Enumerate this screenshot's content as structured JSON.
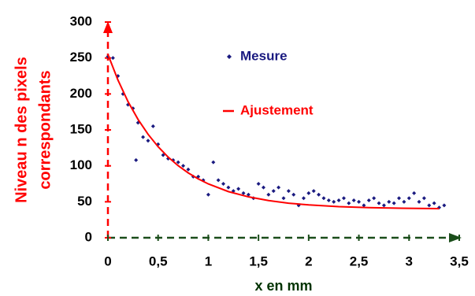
{
  "chart_data": {
    "type": "scatter",
    "ylabel": [
      "Niveau n des pixels",
      "correspondants"
    ],
    "xlabel": "x en mm",
    "xlim": [
      0,
      3.5
    ],
    "ylim": [
      0,
      300
    ],
    "xticks": [
      0,
      {
        "value": 0.5,
        "label": "0,5"
      },
      1,
      {
        "value": 1.5,
        "label": "1,5"
      },
      2,
      {
        "value": 2.5,
        "label": "2,5"
      },
      3,
      {
        "value": 3.5,
        "label": "3,5"
      }
    ],
    "yticks": [
      0,
      50,
      100,
      150,
      200,
      250,
      300
    ],
    "series": [
      {
        "name": "Mesure",
        "color": "#1a1a80",
        "marker": "diamond",
        "x": [
          0,
          0.05,
          0.1,
          0.15,
          0.2,
          0.25,
          0.28,
          0.3,
          0.35,
          0.4,
          0.45,
          0.5,
          0.55,
          0.6,
          0.65,
          0.7,
          0.75,
          0.8,
          0.85,
          0.9,
          0.95,
          1.0,
          1.05,
          1.1,
          1.15,
          1.2,
          1.25,
          1.3,
          1.35,
          1.4,
          1.45,
          1.5,
          1.55,
          1.6,
          1.65,
          1.7,
          1.75,
          1.8,
          1.85,
          1.9,
          1.95,
          2.0,
          2.05,
          2.1,
          2.15,
          2.2,
          2.25,
          2.3,
          2.35,
          2.4,
          2.45,
          2.5,
          2.55,
          2.6,
          2.65,
          2.7,
          2.75,
          2.8,
          2.85,
          2.9,
          2.95,
          3.0,
          3.05,
          3.1,
          3.15,
          3.2,
          3.25,
          3.3,
          3.35
        ],
        "values": [
          252,
          250,
          225,
          200,
          185,
          180,
          108,
          160,
          140,
          135,
          155,
          130,
          115,
          110,
          108,
          105,
          100,
          95,
          85,
          85,
          80,
          60,
          105,
          80,
          75,
          70,
          65,
          68,
          62,
          60,
          55,
          75,
          70,
          60,
          65,
          70,
          55,
          65,
          60,
          45,
          55,
          62,
          65,
          60,
          55,
          52,
          50,
          52,
          55,
          48,
          52,
          50,
          45,
          52,
          55,
          48,
          45,
          50,
          48,
          55,
          50,
          55,
          62,
          50,
          55,
          45,
          48,
          42,
          45
        ]
      },
      {
        "name": "Ajustement",
        "color": "#ff0000",
        "style": "line",
        "x": [
          0,
          0.1,
          0.2,
          0.3,
          0.4,
          0.5,
          0.6,
          0.7,
          0.8,
          0.9,
          1.0,
          1.2,
          1.4,
          1.6,
          1.8,
          2.0,
          2.3,
          2.6,
          3.0,
          3.3
        ],
        "values": [
          255,
          219.3,
          189.4,
          164.6,
          143.9,
          126.6,
          112.2,
          100.2,
          90.2,
          81.9,
          74.9,
          64.2,
          56.9,
          51.7,
          48.1,
          45.7,
          43.3,
          41.9,
          40.9,
          40.5
        ]
      }
    ]
  }
}
